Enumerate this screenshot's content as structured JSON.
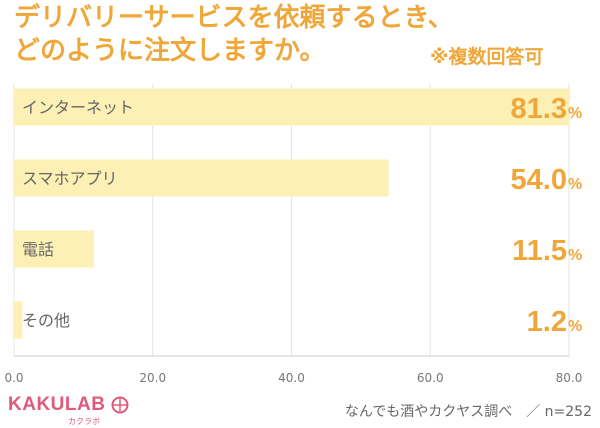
{
  "title_line1": "デリバリーサービスを依頼するとき、",
  "title_line2": "どのように注文しますか。",
  "note": "※複数回答可",
  "source": "なんでも酒やカクヤス調べ　／ n=252",
  "logo": {
    "text": "KAKULAB",
    "sub": "カクラボ"
  },
  "colors": {
    "accent": "#f0a73a",
    "bar": "#fcf0b5",
    "logo": "#e05a7a"
  },
  "chart_data": {
    "type": "bar",
    "orientation": "horizontal",
    "title": "デリバリーサービスを依頼するとき、どのように注文しますか。",
    "categories": [
      "インターネット",
      "スマホアプリ",
      "電話",
      "その他"
    ],
    "values": [
      81.3,
      54.0,
      11.5,
      1.2
    ],
    "value_labels": [
      "81.3",
      "54.0",
      "11.5",
      "1.2"
    ],
    "unit": "%",
    "xlim": [
      0,
      80
    ],
    "ticks": [
      "0.0",
      "20.0",
      "40.0",
      "60.0",
      "80.0"
    ],
    "grid": true
  }
}
